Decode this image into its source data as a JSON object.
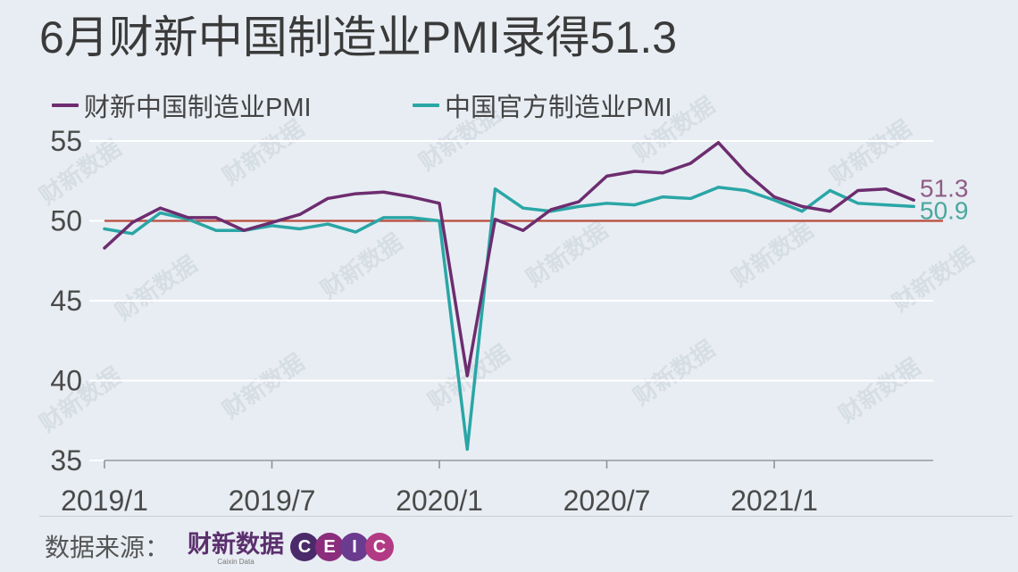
{
  "colors": {
    "background": "#e8edf3"
  },
  "watermark": "财新数据",
  "chart_data": {
    "type": "line",
    "title": "6月财新中国制造业PMI录得51.3",
    "x": [
      "2019/1",
      "2019/2",
      "2019/3",
      "2019/4",
      "2019/5",
      "2019/6",
      "2019/7",
      "2019/8",
      "2019/9",
      "2019/10",
      "2019/11",
      "2019/12",
      "2020/1",
      "2020/2",
      "2020/3",
      "2020/4",
      "2020/5",
      "2020/6",
      "2020/7",
      "2020/8",
      "2020/9",
      "2020/10",
      "2020/11",
      "2020/12",
      "2021/1",
      "2021/2",
      "2021/3",
      "2021/4",
      "2021/5",
      "2021/6"
    ],
    "x_ticks": [
      "2019/1",
      "2019/7",
      "2020/1",
      "2020/7",
      "2021/1"
    ],
    "y_ticks": [
      35,
      40,
      45,
      50,
      55
    ],
    "ylim": [
      35,
      55
    ],
    "grid": "horizontal",
    "legend": "top-left",
    "reference_line": {
      "value": 50,
      "color": "#b94a3c"
    },
    "series": [
      {
        "name": "财新中国制造业PMI",
        "color": "#6d2d6f",
        "label_color": "#8e5c86",
        "end_label": "51.3",
        "values": [
          48.3,
          49.9,
          50.8,
          50.2,
          50.2,
          49.4,
          49.9,
          50.4,
          51.4,
          51.7,
          51.8,
          51.5,
          51.1,
          40.3,
          50.1,
          49.4,
          50.7,
          51.2,
          52.8,
          53.1,
          53.0,
          53.6,
          54.9,
          53.0,
          51.5,
          50.9,
          50.6,
          51.9,
          52.0,
          51.3
        ]
      },
      {
        "name": "中国官方制造业PMI",
        "color": "#2aa6a6",
        "label_color": "#4aa79d",
        "end_label": "50.9",
        "values": [
          49.5,
          49.2,
          50.5,
          50.1,
          49.4,
          49.4,
          49.7,
          49.5,
          49.8,
          49.3,
          50.2,
          50.2,
          50.0,
          35.7,
          52.0,
          50.8,
          50.6,
          50.9,
          51.1,
          51.0,
          51.5,
          51.4,
          52.1,
          51.9,
          51.3,
          50.6,
          51.9,
          51.1,
          51.0,
          50.9
        ]
      }
    ]
  },
  "source": {
    "label": "数据来源：",
    "logo_caixin": "财新数据",
    "logo_caixin_sub": "Caixin Data",
    "logo_ceic": [
      "C",
      "E",
      "I",
      "C"
    ],
    "ceic_colors": [
      "#4a2a6a",
      "#8b2c7c",
      "#6a3b8e",
      "#b23a84"
    ]
  }
}
